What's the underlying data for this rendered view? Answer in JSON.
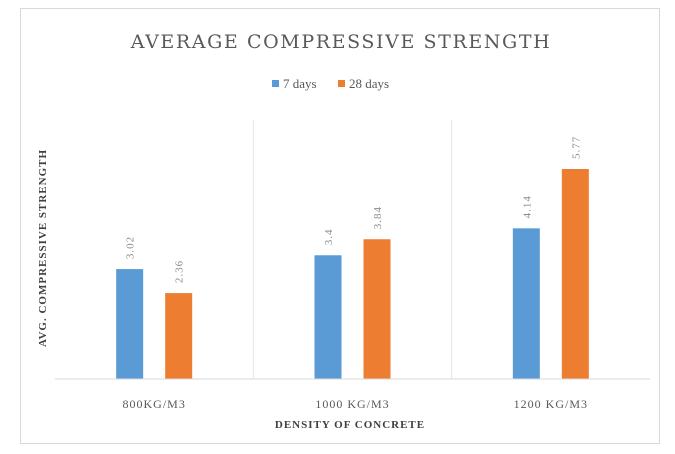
{
  "chart_data": {
    "type": "bar",
    "title": "AVERAGE COMPRESSIVE STRENGTH",
    "xlabel": "DENSITY OF CONCRETE",
    "ylabel": "AVG. COMPRESSIVE STRENGTH",
    "categories": [
      "800KG/M3",
      "1000 KG/M3",
      "1200 KG/M3"
    ],
    "series": [
      {
        "name": "7 days",
        "color": "#5b9bd5",
        "values": [
          3.02,
          3.4,
          4.14
        ],
        "labels": [
          "3.02",
          "3.4",
          "4.14"
        ]
      },
      {
        "name": "28 days",
        "color": "#ed7d31",
        "values": [
          2.36,
          3.84,
          5.77
        ],
        "labels": [
          "2.36",
          "3.84",
          "5.77"
        ]
      }
    ],
    "ylim": [
      0,
      7
    ],
    "grid": "vertical category separators",
    "legend_position": "top"
  }
}
